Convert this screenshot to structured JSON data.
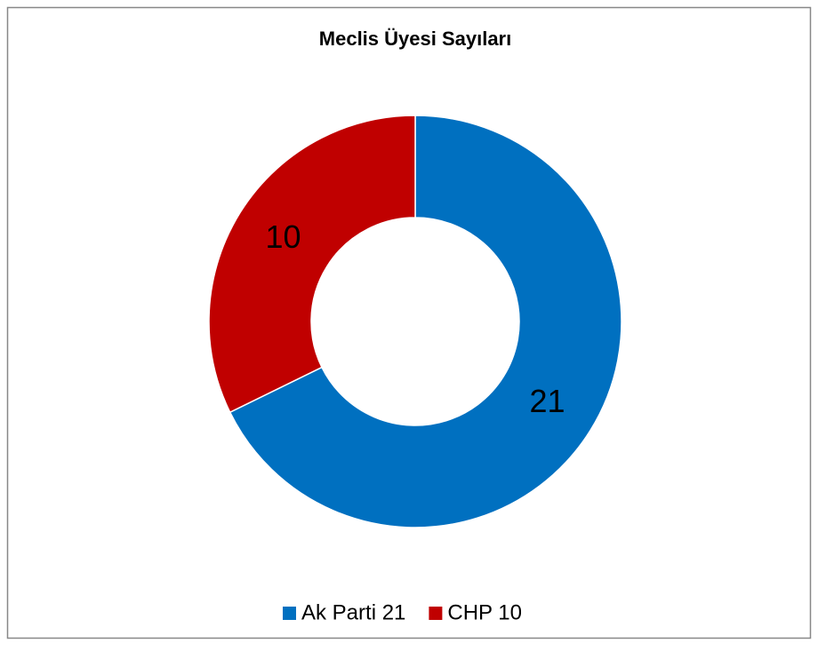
{
  "chart_data": {
    "type": "donut",
    "title": "Meclis Üyesi Sayıları",
    "categories": [
      "Ak Parti 21",
      "CHP 10"
    ],
    "values": [
      21,
      10
    ],
    "colors": [
      "#0070c0",
      "#c00000"
    ],
    "legend": "bottom"
  }
}
